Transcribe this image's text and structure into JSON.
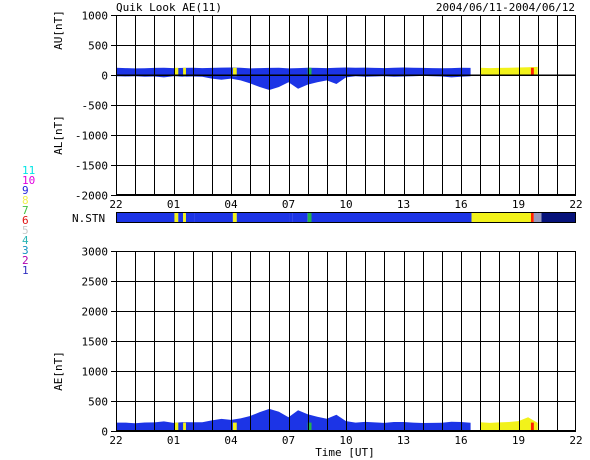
{
  "header": {
    "title": "Quik Look AE(11)",
    "date_range": "2004/06/11-2004/06/12"
  },
  "station_legend": {
    "labels": [
      "11",
      "10",
      "9",
      "8",
      "7",
      "6",
      "5",
      "4",
      "3",
      "2",
      "1"
    ],
    "colors": [
      "#00e5e5",
      "#e000e0",
      "#2222dd",
      "#f0f050",
      "#40c040",
      "#e01010",
      "#c8c8c8",
      "#2ab5b5",
      "#1090c0",
      "#b000b0",
      "#3030c0"
    ]
  },
  "colors": {
    "main_fill": "#1c34e6",
    "alt_fill": "#f2f21a",
    "small_fill": "#24b34b",
    "end_fill": "#ff2200",
    "dark_blue": "#06127a"
  },
  "chart_data": [
    {
      "type": "area",
      "name": "AU / AL",
      "ylabel_top": "AU[nT]",
      "ylabel_bottom": "AL[nT]",
      "ylim": [
        -2000,
        1000
      ],
      "yticks": [
        "1000",
        "500",
        "0",
        "-500",
        "-1000",
        "-1500",
        "-2000"
      ],
      "ytick_values": [
        1000,
        500,
        0,
        -500,
        -1000,
        -1500,
        -2000
      ],
      "xlim": [
        0,
        24
      ],
      "xtick_labels": [
        "22",
        "01",
        "04",
        "07",
        "10",
        "13",
        "16",
        "19",
        "22"
      ],
      "grid": true,
      "au": {
        "x": [
          0,
          0.5,
          1,
          1.5,
          2,
          2.5,
          3,
          3.5,
          4,
          4.5,
          5,
          5.5,
          6,
          6.5,
          7,
          7.5,
          8,
          8.5,
          9,
          9.5,
          10,
          10.5,
          11,
          11.5,
          12,
          12.5,
          13,
          13.5,
          14,
          14.5,
          15,
          15.5,
          16,
          16.5,
          17,
          17.5,
          18,
          18.5,
          19,
          19.5,
          20,
          20.5,
          21,
          21.5,
          22,
          22.5,
          23,
          23.5,
          24
        ],
        "y": [
          120,
          115,
          110,
          112,
          118,
          120,
          115,
          118,
          120,
          115,
          118,
          122,
          125,
          120,
          110,
          115,
          118,
          120,
          110,
          115,
          120,
          118,
          115,
          120,
          125,
          120,
          122,
          118,
          115,
          120,
          125,
          120,
          118,
          115,
          112,
          115,
          120,
          118,
          120,
          115,
          118,
          120,
          125,
          130,
          135,
          120,
          110,
          60,
          20
        ]
      },
      "al": {
        "x": [
          0,
          0.5,
          1,
          1.5,
          2,
          2.5,
          3,
          3.5,
          4,
          4.5,
          5,
          5.5,
          6,
          6.5,
          7,
          7.5,
          8,
          8.5,
          9,
          9.5,
          10,
          10.5,
          11,
          11.5,
          12,
          12.5,
          13,
          13.5,
          14,
          14.5,
          15,
          15.5,
          16,
          16.5,
          17,
          17.5,
          18,
          18.5,
          19,
          19.5,
          20,
          20.5,
          21,
          21.5,
          22,
          22.5,
          23,
          23.5,
          24
        ],
        "y": [
          -20,
          -25,
          -20,
          -30,
          -25,
          -40,
          -20,
          -30,
          -25,
          -30,
          -60,
          -80,
          -60,
          -90,
          -140,
          -200,
          -250,
          -200,
          -120,
          -230,
          -160,
          -120,
          -90,
          -150,
          -40,
          -20,
          -30,
          -25,
          -20,
          -30,
          -25,
          -20,
          -15,
          -20,
          -25,
          -40,
          -30,
          -20,
          -25,
          -20,
          -25,
          -30,
          -40,
          -100,
          0,
          0,
          0,
          0,
          0
        ]
      }
    },
    {
      "type": "heatmap",
      "name": "N.STN",
      "label": "N.STN",
      "segments": [
        {
          "from": 0,
          "to": 3.05,
          "station": "9"
        },
        {
          "from": 3.05,
          "to": 3.25,
          "station": "8"
        },
        {
          "from": 3.25,
          "to": 3.5,
          "station": "9"
        },
        {
          "from": 3.5,
          "to": 3.65,
          "station": "8"
        },
        {
          "from": 3.65,
          "to": 4.1,
          "station": "9"
        },
        {
          "from": 4.1,
          "to": 6.1,
          "station": "9"
        },
        {
          "from": 6.1,
          "to": 6.3,
          "station": "8"
        },
        {
          "from": 6.3,
          "to": 9.05,
          "station": "9"
        },
        {
          "from": 9.05,
          "to": 9.2,
          "station": "9"
        },
        {
          "from": 9.2,
          "to": 10.0,
          "station": "9"
        },
        {
          "from": 10.0,
          "to": 10.2,
          "station": "7"
        },
        {
          "from": 10.2,
          "to": 18.55,
          "station": "9"
        },
        {
          "from": 18.55,
          "to": 21.65,
          "station": "8"
        },
        {
          "from": 21.65,
          "to": 21.8,
          "station": "6"
        },
        {
          "from": 21.8,
          "to": 22.2,
          "station": "5"
        },
        {
          "from": 22.2,
          "to": 24.0,
          "station": "10"
        }
      ],
      "xlim": [
        0,
        24
      ]
    },
    {
      "type": "area",
      "name": "AE",
      "ylabel": "AE[nT]",
      "xlabel": "Time [UT]",
      "ylim": [
        0,
        3000
      ],
      "yticks": [
        "3000",
        "2500",
        "2000",
        "1500",
        "1000",
        "500",
        "0"
      ],
      "ytick_values": [
        3000,
        2500,
        2000,
        1500,
        1000,
        500,
        0
      ],
      "xlim": [
        0,
        24
      ],
      "xtick_labels": [
        "22",
        "01",
        "04",
        "07",
        "10",
        "13",
        "16",
        "19",
        "22"
      ],
      "grid": true,
      "ae": {
        "x": [
          0,
          0.5,
          1,
          1.5,
          2,
          2.5,
          3,
          3.5,
          4,
          4.5,
          5,
          5.5,
          6,
          6.5,
          7,
          7.5,
          8,
          8.5,
          9,
          9.5,
          10,
          10.5,
          11,
          11.5,
          12,
          12.5,
          13,
          13.5,
          14,
          14.5,
          15,
          15.5,
          16,
          16.5,
          17,
          17.5,
          18,
          18.5,
          19,
          19.5,
          20,
          20.5,
          21,
          21.5,
          22,
          22.5,
          23,
          23.5,
          24
        ],
        "y": [
          140,
          140,
          130,
          142,
          143,
          160,
          135,
          148,
          145,
          145,
          178,
          202,
          185,
          210,
          250,
          315,
          368,
          320,
          230,
          345,
          280,
          238,
          205,
          270,
          165,
          140,
          152,
          143,
          135,
          150,
          150,
          140,
          133,
          135,
          137,
          155,
          150,
          138,
          145,
          135,
          143,
          150,
          165,
          230,
          135,
          120,
          110,
          60,
          20
        ]
      },
      "station_segments": [
        {
          "from": 0,
          "to": 3.05,
          "color": "main"
        },
        {
          "from": 3.05,
          "to": 3.25,
          "color": "alt"
        },
        {
          "from": 3.5,
          "to": 3.65,
          "color": "alt"
        },
        {
          "from": 6.1,
          "to": 6.3,
          "color": "alt"
        },
        {
          "from": 10.0,
          "to": 10.2,
          "color": "small"
        },
        {
          "from": 18.55,
          "to": 21.65,
          "color": "alt"
        }
      ]
    }
  ],
  "axes": {
    "x_end_label_note": ""
  }
}
